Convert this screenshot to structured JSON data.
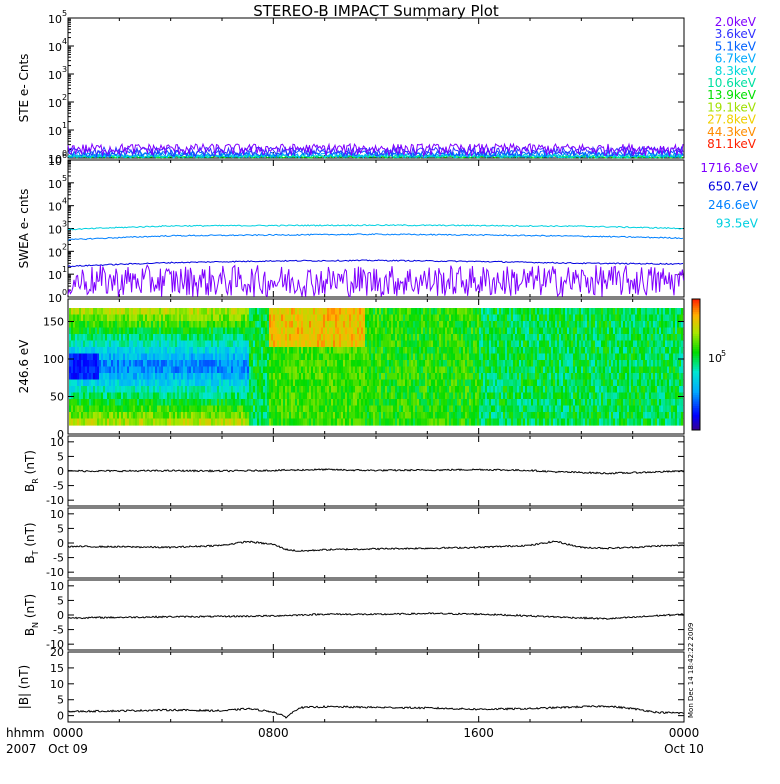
{
  "page": {
    "title": "STEREO-B IMPACT Summary Plot",
    "footer": {
      "unit_label": "hhmm",
      "year_label": "2007"
    },
    "side_stamp": "Mon Dec 14 18:42:22 2009"
  },
  "chart_data": [
    {
      "id": "ste",
      "type": "line",
      "ylabel": "STE e- Cnts",
      "yscale": "log",
      "ylim": [
        1,
        100000
      ],
      "y_ticks": [
        {
          "base": "10",
          "exp": "0"
        },
        {
          "base": "10",
          "exp": "1"
        },
        {
          "base": "10",
          "exp": "2"
        },
        {
          "base": "10",
          "exp": "3"
        },
        {
          "base": "10",
          "exp": "4"
        },
        {
          "base": "10",
          "exp": "5"
        }
      ],
      "legend": [
        {
          "name": "2.0keV",
          "color": "#7f00ff"
        },
        {
          "name": "3.6keV",
          "color": "#3030ff"
        },
        {
          "name": "5.1keV",
          "color": "#0060ff"
        },
        {
          "name": "6.7keV",
          "color": "#00a8ff"
        },
        {
          "name": "8.3keV",
          "color": "#00d8d8"
        },
        {
          "name": "10.6keV",
          "color": "#00e0a0"
        },
        {
          "name": "13.9keV",
          "color": "#00e000"
        },
        {
          "name": "19.1keV",
          "color": "#a0e000"
        },
        {
          "name": "27.8keV",
          "color": "#f0d000"
        },
        {
          "name": "44.3keV",
          "color": "#ff8c00"
        },
        {
          "name": "81.1keV",
          "color": "#ff2000"
        }
      ],
      "series": [
        {
          "name": "2.0keV",
          "color": "#7f00ff",
          "base": 2.2,
          "noise": 0.45
        },
        {
          "name": "3.6keV",
          "color": "#3030ff",
          "base": 1.8,
          "noise": 0.35
        },
        {
          "name": "5.1keV",
          "color": "#0060ff",
          "base": 1.5,
          "noise": 0.25
        },
        {
          "name": "6.7keV",
          "color": "#00a8ff",
          "base": 1.3,
          "noise": 0.2
        },
        {
          "name": "8.3keV",
          "color": "#00d8d8",
          "base": 1.2,
          "noise": 0.15
        },
        {
          "name": "10.6keV",
          "color": "#00e0a0",
          "base": 1.15,
          "noise": 0.12
        },
        {
          "name": "13.9keV",
          "color": "#00e000",
          "base": 1.1,
          "noise": 0.1
        }
      ]
    },
    {
      "id": "swea",
      "type": "line",
      "ylabel": "SWEA e- cnts",
      "yscale": "log",
      "ylim": [
        1,
        1000000
      ],
      "y_ticks": [
        {
          "base": "10",
          "exp": "0"
        },
        {
          "base": "10",
          "exp": "1"
        },
        {
          "base": "10",
          "exp": "2"
        },
        {
          "base": "10",
          "exp": "3"
        },
        {
          "base": "10",
          "exp": "4"
        },
        {
          "base": "10",
          "exp": "5"
        },
        {
          "base": "10",
          "exp": "6"
        }
      ],
      "legend": [
        {
          "name": "1716.8eV",
          "color": "#7f00ff"
        },
        {
          "name": "650.7eV",
          "color": "#0000e0"
        },
        {
          "name": "246.6eV",
          "color": "#0080ff"
        },
        {
          "name": "93.5eV",
          "color": "#00d0e0"
        }
      ],
      "series": [
        {
          "name": "93.5eV",
          "color": "#00d0e0",
          "x": [
            0,
            4,
            8,
            12,
            16,
            20,
            24
          ],
          "y": [
            900,
            1300,
            1350,
            1400,
            1350,
            1250,
            1000
          ]
        },
        {
          "name": "246.6eV",
          "color": "#0080ff",
          "x": [
            0,
            4,
            8,
            12,
            16,
            20,
            24
          ],
          "y": [
            320,
            480,
            520,
            560,
            520,
            460,
            380
          ]
        },
        {
          "name": "650.7eV",
          "color": "#0000e0",
          "x": [
            0,
            4,
            8,
            12,
            16,
            20,
            24
          ],
          "y": [
            22,
            32,
            38,
            40,
            36,
            30,
            28
          ]
        },
        {
          "name": "1716.8eV",
          "color": "#7f00ff",
          "x": [
            0,
            4,
            8,
            12,
            16,
            20,
            24
          ],
          "y": [
            5,
            5,
            5,
            5,
            5,
            5,
            5
          ]
        }
      ]
    },
    {
      "id": "pad",
      "type": "heatmap",
      "ylabel": "246.6 eV",
      "ylim": [
        0,
        180
      ],
      "y_ticks": [
        "0",
        "50",
        "100",
        "150"
      ],
      "colorbar_label_base": "10",
      "colorbar_label_exp": "5"
    },
    {
      "id": "br",
      "type": "line",
      "ylabel_main": "B",
      "ylabel_sub": "R",
      "ylabel_unit": " (nT)",
      "ylim": [
        -12,
        12
      ],
      "y_ticks": [
        "-10",
        "-5",
        "0",
        "5",
        "10"
      ],
      "series": [
        {
          "name": "BR",
          "x": [
            0,
            2,
            4,
            6,
            8,
            10,
            11,
            12,
            14,
            16,
            18,
            19,
            20,
            21,
            22,
            23,
            24
          ],
          "y": [
            0,
            0,
            0.1,
            0,
            0.2,
            0.5,
            0.3,
            0.2,
            0.3,
            0.5,
            0.2,
            -0.3,
            -0.5,
            -0.8,
            -0.6,
            -0.3,
            0
          ]
        }
      ]
    },
    {
      "id": "bt",
      "type": "line",
      "ylabel_main": "B",
      "ylabel_sub": "T",
      "ylabel_unit": " (nT)",
      "ylim": [
        -12,
        12
      ],
      "y_ticks": [
        "-10",
        "-5",
        "0",
        "5",
        "10"
      ],
      "series": [
        {
          "name": "BT",
          "x": [
            0,
            2,
            4,
            6,
            7,
            8,
            8.5,
            9,
            10,
            12,
            14,
            16,
            18,
            19,
            19.5,
            20,
            21,
            22,
            23,
            24
          ],
          "y": [
            -1.2,
            -1.3,
            -1.5,
            -0.8,
            0.5,
            -0.5,
            -2.2,
            -2.8,
            -2.3,
            -2,
            -1.8,
            -1.5,
            -0.8,
            0.6,
            -0.5,
            -1.5,
            -1.8,
            -1.5,
            -1,
            -0.8
          ]
        }
      ]
    },
    {
      "id": "bn",
      "type": "line",
      "ylabel_main": "B",
      "ylabel_sub": "N",
      "ylabel_unit": " (nT)",
      "ylim": [
        -12,
        12
      ],
      "y_ticks": [
        "-10",
        "-5",
        "0",
        "5",
        "10"
      ],
      "series": [
        {
          "name": "BN",
          "x": [
            0,
            2,
            4,
            6,
            8,
            10,
            12,
            14,
            16,
            18,
            20,
            21,
            22,
            23,
            24
          ],
          "y": [
            -1,
            -0.8,
            -0.6,
            -0.5,
            -0.3,
            0.3,
            0.2,
            0.5,
            0.3,
            -0.3,
            -1,
            -1.3,
            -0.8,
            -0.2,
            0.2
          ]
        }
      ]
    },
    {
      "id": "bmag",
      "type": "line",
      "ylabel": "|B| (nT)",
      "ylim": [
        -2,
        20
      ],
      "y_ticks": [
        "0",
        "5",
        "10",
        "15",
        "20"
      ],
      "series": [
        {
          "name": "|B|",
          "x": [
            0,
            2,
            4,
            6,
            7,
            8,
            8.5,
            9,
            10,
            12,
            14,
            16,
            18,
            19,
            20,
            21,
            22,
            23,
            24
          ],
          "y": [
            1.3,
            1.5,
            1.8,
            1.5,
            2.2,
            1.2,
            -0.5,
            2.5,
            2.8,
            2.6,
            2.4,
            2,
            2.2,
            2.5,
            2.8,
            3,
            2.2,
            1,
            0.8
          ]
        }
      ]
    }
  ],
  "x_axis": {
    "x_range": [
      0,
      24
    ],
    "ticks": [
      {
        "value": 0,
        "top": "0000",
        "bottom": "Oct 09"
      },
      {
        "value": 8,
        "top": "0800",
        "bottom": ""
      },
      {
        "value": 16,
        "top": "1600",
        "bottom": ""
      },
      {
        "value": 24,
        "top": "0000",
        "bottom": "Oct 10"
      }
    ]
  }
}
